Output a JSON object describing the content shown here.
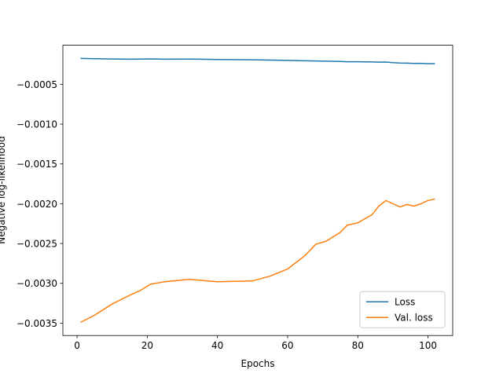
{
  "chart_data": {
    "type": "line",
    "xlabel": "Epochs",
    "ylabel": "Negative log-likelihood",
    "x": [
      1,
      5,
      10,
      15,
      18,
      21,
      25,
      32,
      40,
      50,
      55,
      60,
      65,
      68,
      71,
      75,
      77,
      80,
      84,
      86,
      88,
      90,
      92,
      94,
      96,
      98,
      100,
      102
    ],
    "series": [
      {
        "name": "Loss",
        "color": "#1f77b4",
        "values": [
          -0.000175,
          -0.000178,
          -0.000182,
          -0.000185,
          -0.000183,
          -0.000181,
          -0.000184,
          -0.000183,
          -0.000188,
          -0.000192,
          -0.000196,
          -0.000199,
          -0.000204,
          -0.000206,
          -0.000209,
          -0.000213,
          -0.000216,
          -0.000217,
          -0.000219,
          -0.000222,
          -0.00022,
          -0.000228,
          -0.000232,
          -0.000234,
          -0.000238,
          -0.000236,
          -0.000241,
          -0.00024
        ]
      },
      {
        "name": "Val. loss",
        "color": "#ff7f0e",
        "values": [
          -0.00349,
          -0.0034,
          -0.00326,
          -0.00315,
          -0.00309,
          -0.00301,
          -0.00298,
          -0.00295,
          -0.00298,
          -0.00297,
          -0.00291,
          -0.00282,
          -0.00265,
          -0.00251,
          -0.00247,
          -0.00236,
          -0.00227,
          -0.00224,
          -0.00214,
          -0.00203,
          -0.00196,
          -0.002,
          -0.00204,
          -0.00201,
          -0.00203,
          -0.002,
          -0.00196,
          -0.00194
        ]
      }
    ],
    "xlim": [
      -4.05,
      107.05
    ],
    "ylim": [
      -0.003656,
      -9e-06
    ],
    "xticks": [
      0,
      20,
      40,
      60,
      80,
      100
    ],
    "yticks": [
      {
        "value": -0.0035,
        "label": "−0.0035"
      },
      {
        "value": -0.003,
        "label": "−0.0030"
      },
      {
        "value": -0.0025,
        "label": "−0.0025"
      },
      {
        "value": -0.002,
        "label": "−0.0020"
      },
      {
        "value": -0.0015,
        "label": "−0.0015"
      },
      {
        "value": -0.001,
        "label": "−0.0010"
      },
      {
        "value": -0.0005,
        "label": "−0.0005"
      }
    ],
    "legend": "lower right"
  }
}
